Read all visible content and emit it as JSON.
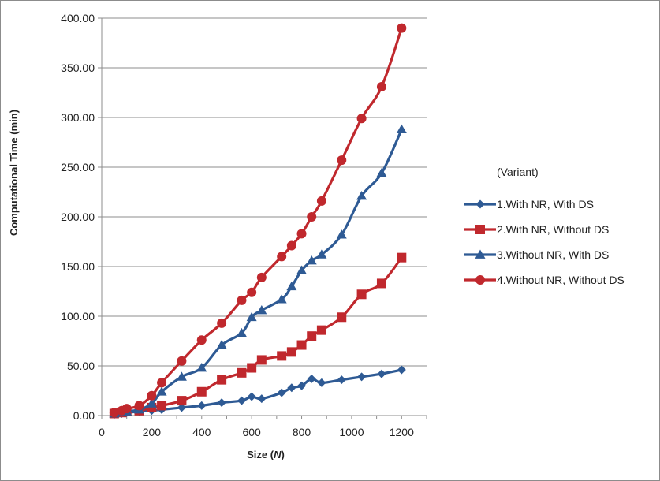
{
  "chart_data": {
    "type": "line",
    "xlabel": "Size (",
    "xlabel_var": "N",
    "xlabel_end": ")",
    "ylabel": "Computational Time (min)",
    "xlim": [
      0,
      1300
    ],
    "ylim": [
      0,
      400
    ],
    "x_ticks": [
      0,
      200,
      400,
      600,
      800,
      1000,
      1200
    ],
    "y_ticks": [
      0,
      50,
      100,
      150,
      200,
      250,
      300,
      350,
      400
    ],
    "y_tick_labels": [
      "0.00",
      "50.00",
      "100.00",
      "150.00",
      "200.00",
      "250.00",
      "300.00",
      "350.00",
      "400.00"
    ],
    "grid": "horizontal",
    "legend": {
      "title": "(Variant)",
      "placement": "right"
    },
    "series": [
      {
        "name": "1.With NR, With DS",
        "color": "#2e5a94",
        "marker": "diamond",
        "points": [
          [
            50,
            1
          ],
          [
            80,
            2
          ],
          [
            100,
            3
          ],
          [
            150,
            4
          ],
          [
            200,
            5
          ],
          [
            240,
            6
          ],
          [
            320,
            8
          ],
          [
            400,
            10
          ],
          [
            480,
            13
          ],
          [
            560,
            15
          ],
          [
            600,
            19
          ],
          [
            640,
            17
          ],
          [
            720,
            23
          ],
          [
            760,
            28
          ],
          [
            800,
            30
          ],
          [
            840,
            37
          ],
          [
            880,
            33
          ],
          [
            960,
            36
          ],
          [
            1040,
            39
          ],
          [
            1120,
            42
          ],
          [
            1200,
            46
          ]
        ]
      },
      {
        "name": "2.With NR, Without DS",
        "color": "#c0282d",
        "marker": "square",
        "points": [
          [
            50,
            2
          ],
          [
            80,
            3
          ],
          [
            100,
            4
          ],
          [
            150,
            5
          ],
          [
            200,
            8
          ],
          [
            240,
            10
          ],
          [
            320,
            15
          ],
          [
            400,
            24
          ],
          [
            480,
            36
          ],
          [
            560,
            43
          ],
          [
            600,
            48
          ],
          [
            640,
            56
          ],
          [
            720,
            60
          ],
          [
            760,
            64
          ],
          [
            800,
            71
          ],
          [
            840,
            80
          ],
          [
            880,
            86
          ],
          [
            960,
            99
          ],
          [
            1040,
            122
          ],
          [
            1120,
            133
          ],
          [
            1200,
            159
          ]
        ]
      },
      {
        "name": "3.Without NR, With DS",
        "color": "#2e5a94",
        "marker": "triangle",
        "points": [
          [
            50,
            2
          ],
          [
            80,
            3
          ],
          [
            100,
            4
          ],
          [
            150,
            6
          ],
          [
            200,
            12
          ],
          [
            240,
            24
          ],
          [
            320,
            39
          ],
          [
            400,
            48
          ],
          [
            480,
            71
          ],
          [
            560,
            83
          ],
          [
            600,
            99
          ],
          [
            640,
            106
          ],
          [
            720,
            117
          ],
          [
            760,
            130
          ],
          [
            800,
            146
          ],
          [
            840,
            156
          ],
          [
            880,
            162
          ],
          [
            960,
            182
          ],
          [
            1040,
            221
          ],
          [
            1120,
            244
          ],
          [
            1200,
            288
          ]
        ]
      },
      {
        "name": "4.Without NR, Without DS",
        "color": "#c0282d",
        "marker": "circle",
        "points": [
          [
            50,
            3
          ],
          [
            80,
            5
          ],
          [
            100,
            7
          ],
          [
            150,
            10
          ],
          [
            200,
            20
          ],
          [
            240,
            33
          ],
          [
            320,
            55
          ],
          [
            400,
            76
          ],
          [
            480,
            93
          ],
          [
            560,
            116
          ],
          [
            600,
            124
          ],
          [
            640,
            139
          ],
          [
            720,
            160
          ],
          [
            760,
            171
          ],
          [
            800,
            183
          ],
          [
            840,
            200
          ],
          [
            880,
            216
          ],
          [
            960,
            257
          ],
          [
            1040,
            299
          ],
          [
            1120,
            331
          ],
          [
            1200,
            390
          ]
        ]
      }
    ]
  }
}
